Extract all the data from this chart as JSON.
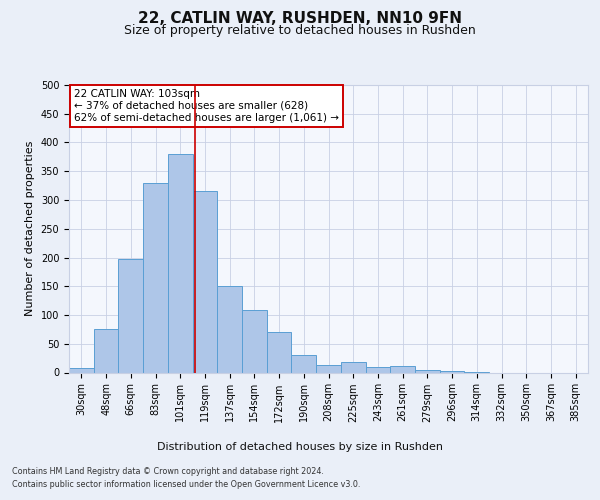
{
  "title1": "22, CATLIN WAY, RUSHDEN, NN10 9FN",
  "title2": "Size of property relative to detached houses in Rushden",
  "xlabel": "Distribution of detached houses by size in Rushden",
  "ylabel": "Number of detached properties",
  "footer1": "Contains HM Land Registry data © Crown copyright and database right 2024.",
  "footer2": "Contains public sector information licensed under the Open Government Licence v3.0.",
  "bar_values": [
    8,
    75,
    197,
    330,
    380,
    315,
    150,
    108,
    70,
    30,
    13,
    18,
    10,
    12,
    5,
    2,
    1,
    0,
    0,
    0,
    0
  ],
  "x_labels": [
    "30sqm",
    "48sqm",
    "66sqm",
    "83sqm",
    "101sqm",
    "119sqm",
    "137sqm",
    "154sqm",
    "172sqm",
    "190sqm",
    "208sqm",
    "225sqm",
    "243sqm",
    "261sqm",
    "279sqm",
    "296sqm",
    "314sqm",
    "332sqm",
    "350sqm",
    "367sqm",
    "385sqm"
  ],
  "bar_color": "#aec6e8",
  "bar_edge_color": "#5a9fd4",
  "ylim": [
    0,
    500
  ],
  "yticks": [
    0,
    50,
    100,
    150,
    200,
    250,
    300,
    350,
    400,
    450,
    500
  ],
  "vline_color": "#cc0000",
  "annotation_text": "22 CATLIN WAY: 103sqm\n← 37% of detached houses are smaller (628)\n62% of semi-detached houses are larger (1,061) →",
  "annotation_box_color": "#ffffff",
  "annotation_box_edge": "#cc0000",
  "bg_color": "#eaeff8",
  "plot_bg_color": "#f4f7fd",
  "grid_color": "#c8d0e4",
  "title_fontsize": 11,
  "subtitle_fontsize": 9,
  "label_fontsize": 8,
  "tick_fontsize": 7,
  "annotation_fontsize": 7.5
}
